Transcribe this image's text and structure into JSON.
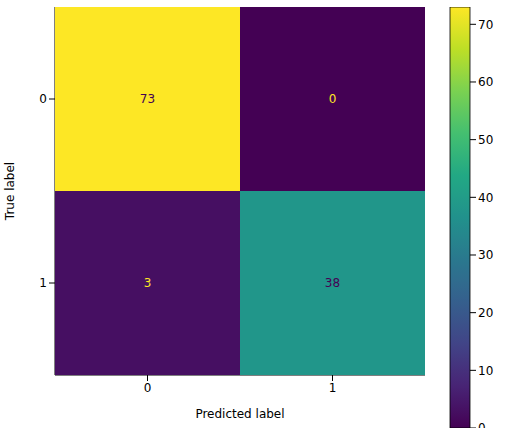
{
  "chart_data": {
    "type": "heatmap",
    "x_label": "Predicted label",
    "y_label": "True label",
    "xlim": [
      -0.5,
      1.5
    ],
    "ylim": [
      1.5,
      -0.5
    ],
    "xticks": [
      0,
      1
    ],
    "yticks": [
      0,
      1
    ],
    "cells": [
      [
        73,
        0
      ],
      [
        3,
        38
      ]
    ],
    "color": "viridis",
    "colorbar": {
      "range": [
        0,
        73
      ],
      "ticks": [
        0,
        10,
        20,
        30,
        40,
        50,
        60,
        70
      ]
    }
  }
}
